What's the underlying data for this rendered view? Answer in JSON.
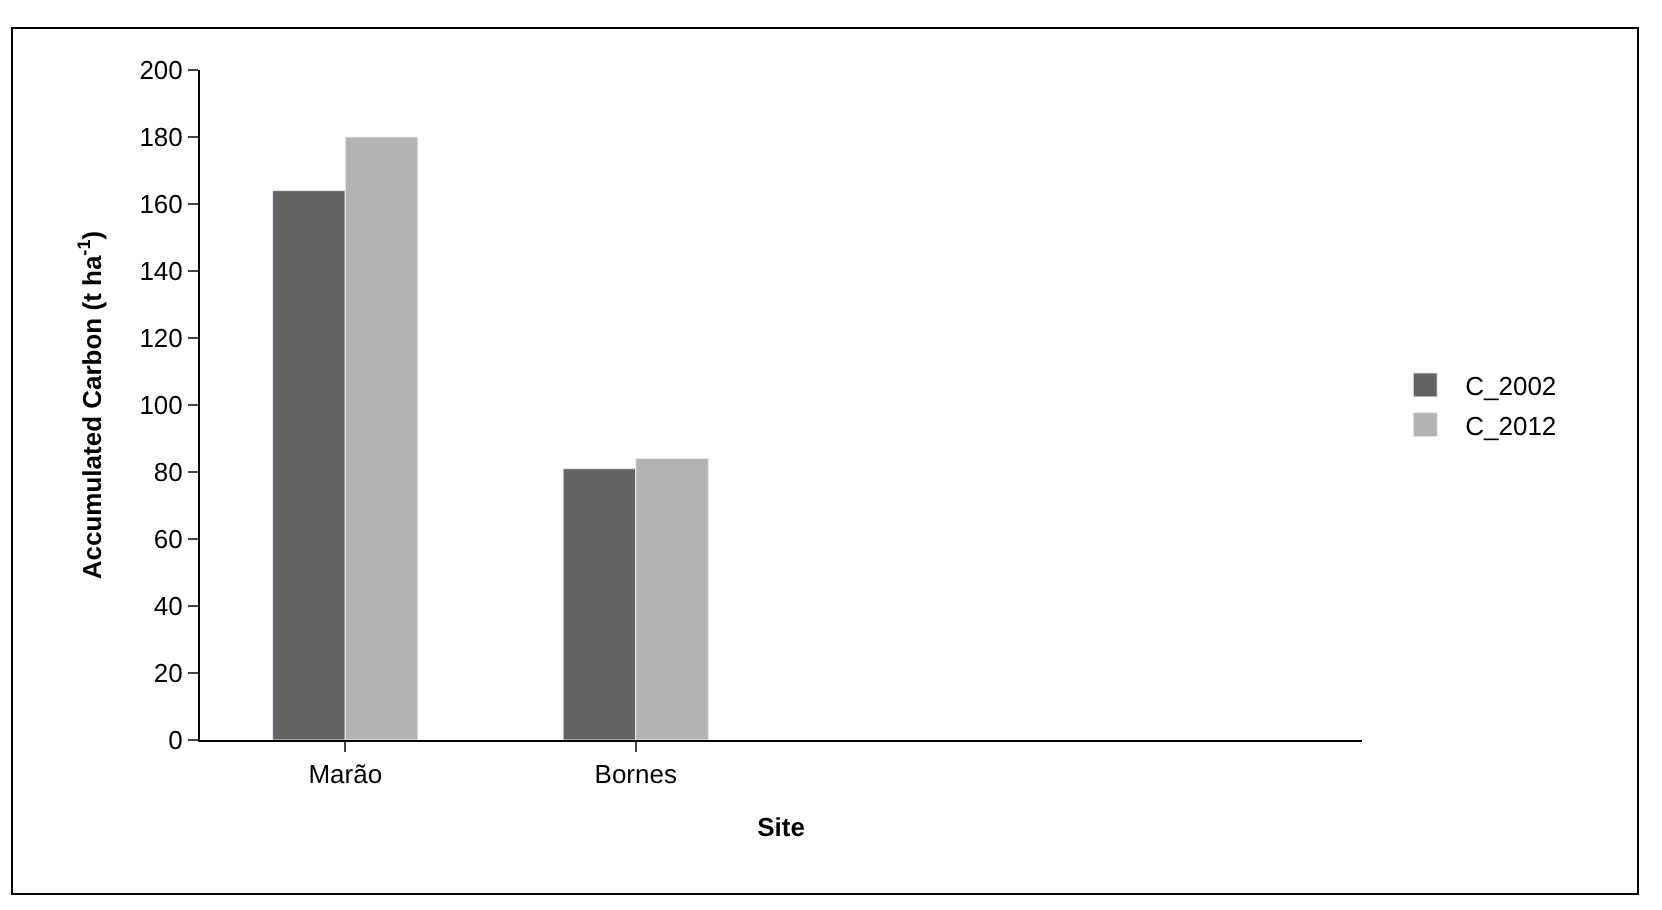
{
  "chart_data": {
    "type": "bar",
    "xlabel": "Site",
    "ylabel": "Accumulated Carbon (t ha$^{-1}$)",
    "categories": [
      "Marão",
      "Bornes",
      null,
      null
    ],
    "series": [
      {
        "name": "C_2002",
        "color": "#636363",
        "values": [
          164,
          81,
          null,
          null
        ]
      },
      {
        "name": "C_2012",
        "color": "#b3b3b3",
        "values": [
          180,
          84,
          null,
          null
        ]
      }
    ],
    "ylim": [
      0,
      200
    ],
    "yticks": [
      0,
      20,
      40,
      60,
      80,
      100,
      120,
      140,
      160,
      180,
      200
    ],
    "legend": "right"
  }
}
